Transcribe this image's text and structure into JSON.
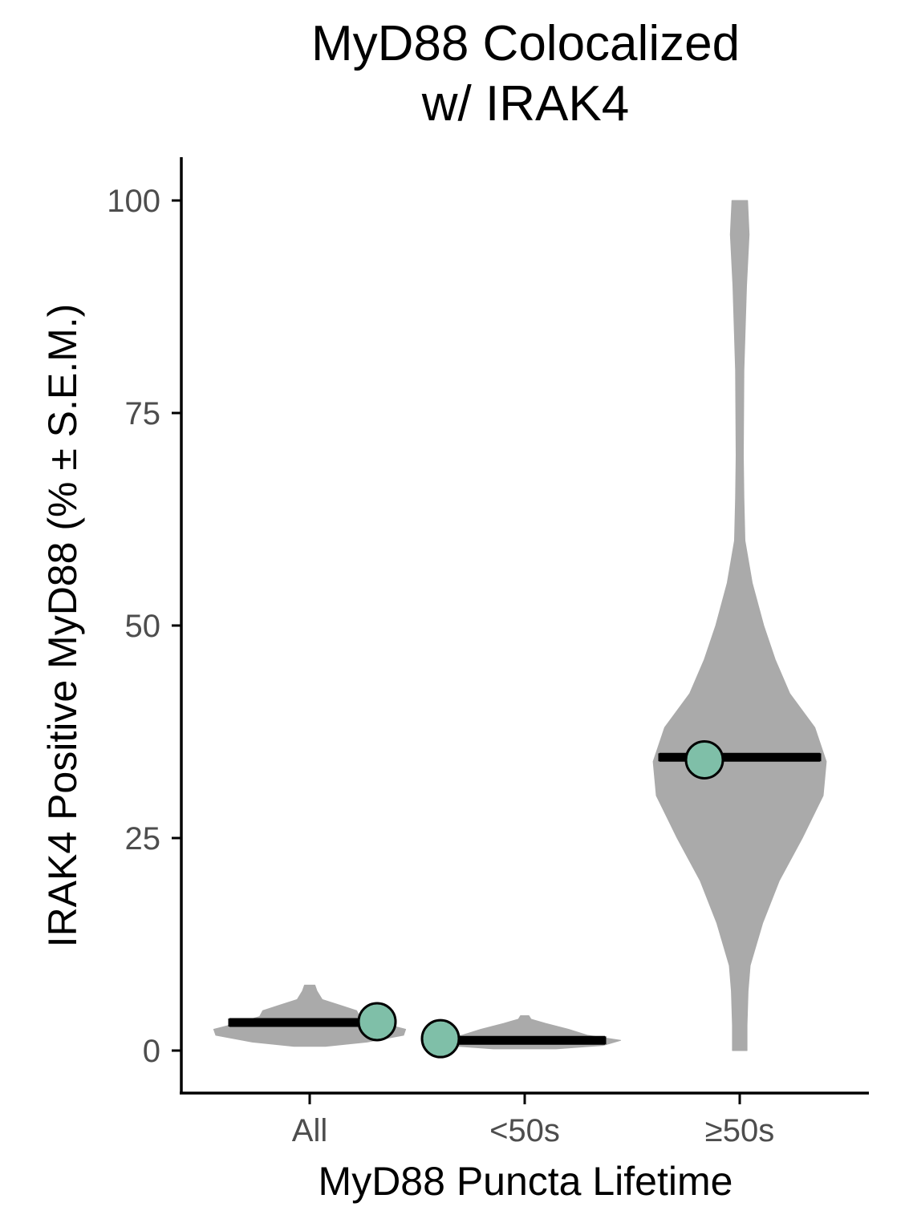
{
  "chart_data": {
    "type": "violin",
    "title_lines": [
      "MyD88 Colocalized",
      "w/ IRAK4"
    ],
    "xlabel": "MyD88 Puncta Lifetime",
    "ylabel": "IRAK4 Positive MyD88 (% ± S.E.M.)",
    "categories": [
      "All",
      "<50s",
      "≥50s"
    ],
    "yticks": [
      "0",
      "25",
      "50",
      "75",
      "100"
    ],
    "ytick_values": [
      0,
      25,
      50,
      75,
      100
    ],
    "ylim": [
      -5,
      105
    ],
    "grid": false,
    "violins": [
      {
        "category": "All",
        "range": [
          0.5,
          7.7
        ],
        "profile": [
          [
            0.5,
            0.15
          ],
          [
            1.0,
            0.55
          ],
          [
            1.8,
            0.9
          ],
          [
            2.5,
            0.92
          ],
          [
            3.2,
            0.7
          ],
          [
            4.0,
            0.48
          ],
          [
            4.7,
            0.45
          ],
          [
            5.3,
            0.3
          ],
          [
            6.0,
            0.12
          ],
          [
            7.0,
            0.07
          ],
          [
            7.7,
            0.05
          ]
        ]
      },
      {
        "category": "<50s",
        "range": [
          0.2,
          4.1
        ],
        "profile": [
          [
            0.2,
            0.3
          ],
          [
            0.6,
            0.75
          ],
          [
            1.2,
            0.92
          ],
          [
            1.8,
            0.6
          ],
          [
            2.5,
            0.42
          ],
          [
            3.2,
            0.2
          ],
          [
            3.7,
            0.06
          ],
          [
            4.1,
            0.04
          ]
        ]
      },
      {
        "category": "≥50s",
        "range": [
          0,
          100
        ],
        "profile": [
          [
            0,
            0.07
          ],
          [
            3,
            0.07
          ],
          [
            7,
            0.08
          ],
          [
            10,
            0.1
          ],
          [
            15,
            0.22
          ],
          [
            20,
            0.38
          ],
          [
            25,
            0.6
          ],
          [
            30,
            0.8
          ],
          [
            34,
            0.83
          ],
          [
            38,
            0.72
          ],
          [
            42,
            0.48
          ],
          [
            46,
            0.34
          ],
          [
            50,
            0.23
          ],
          [
            55,
            0.12
          ],
          [
            60,
            0.05
          ],
          [
            65,
            0.04
          ],
          [
            70,
            0.035
          ],
          [
            80,
            0.04
          ],
          [
            90,
            0.065
          ],
          [
            96,
            0.09
          ],
          [
            100,
            0.075
          ]
        ]
      }
    ],
    "means": [
      {
        "category": "All",
        "value": 3.3,
        "point_value": 3.4
      },
      {
        "category": "<50s",
        "value": 1.2,
        "point_value": 1.4
      },
      {
        "category": "≥50s",
        "value": 34.5,
        "point_value": 34.2
      }
    ],
    "colors": {
      "violin": "#aaaaaa",
      "point": "#7fbfa8",
      "mean_line": "#000000",
      "axis": "#000000"
    }
  }
}
